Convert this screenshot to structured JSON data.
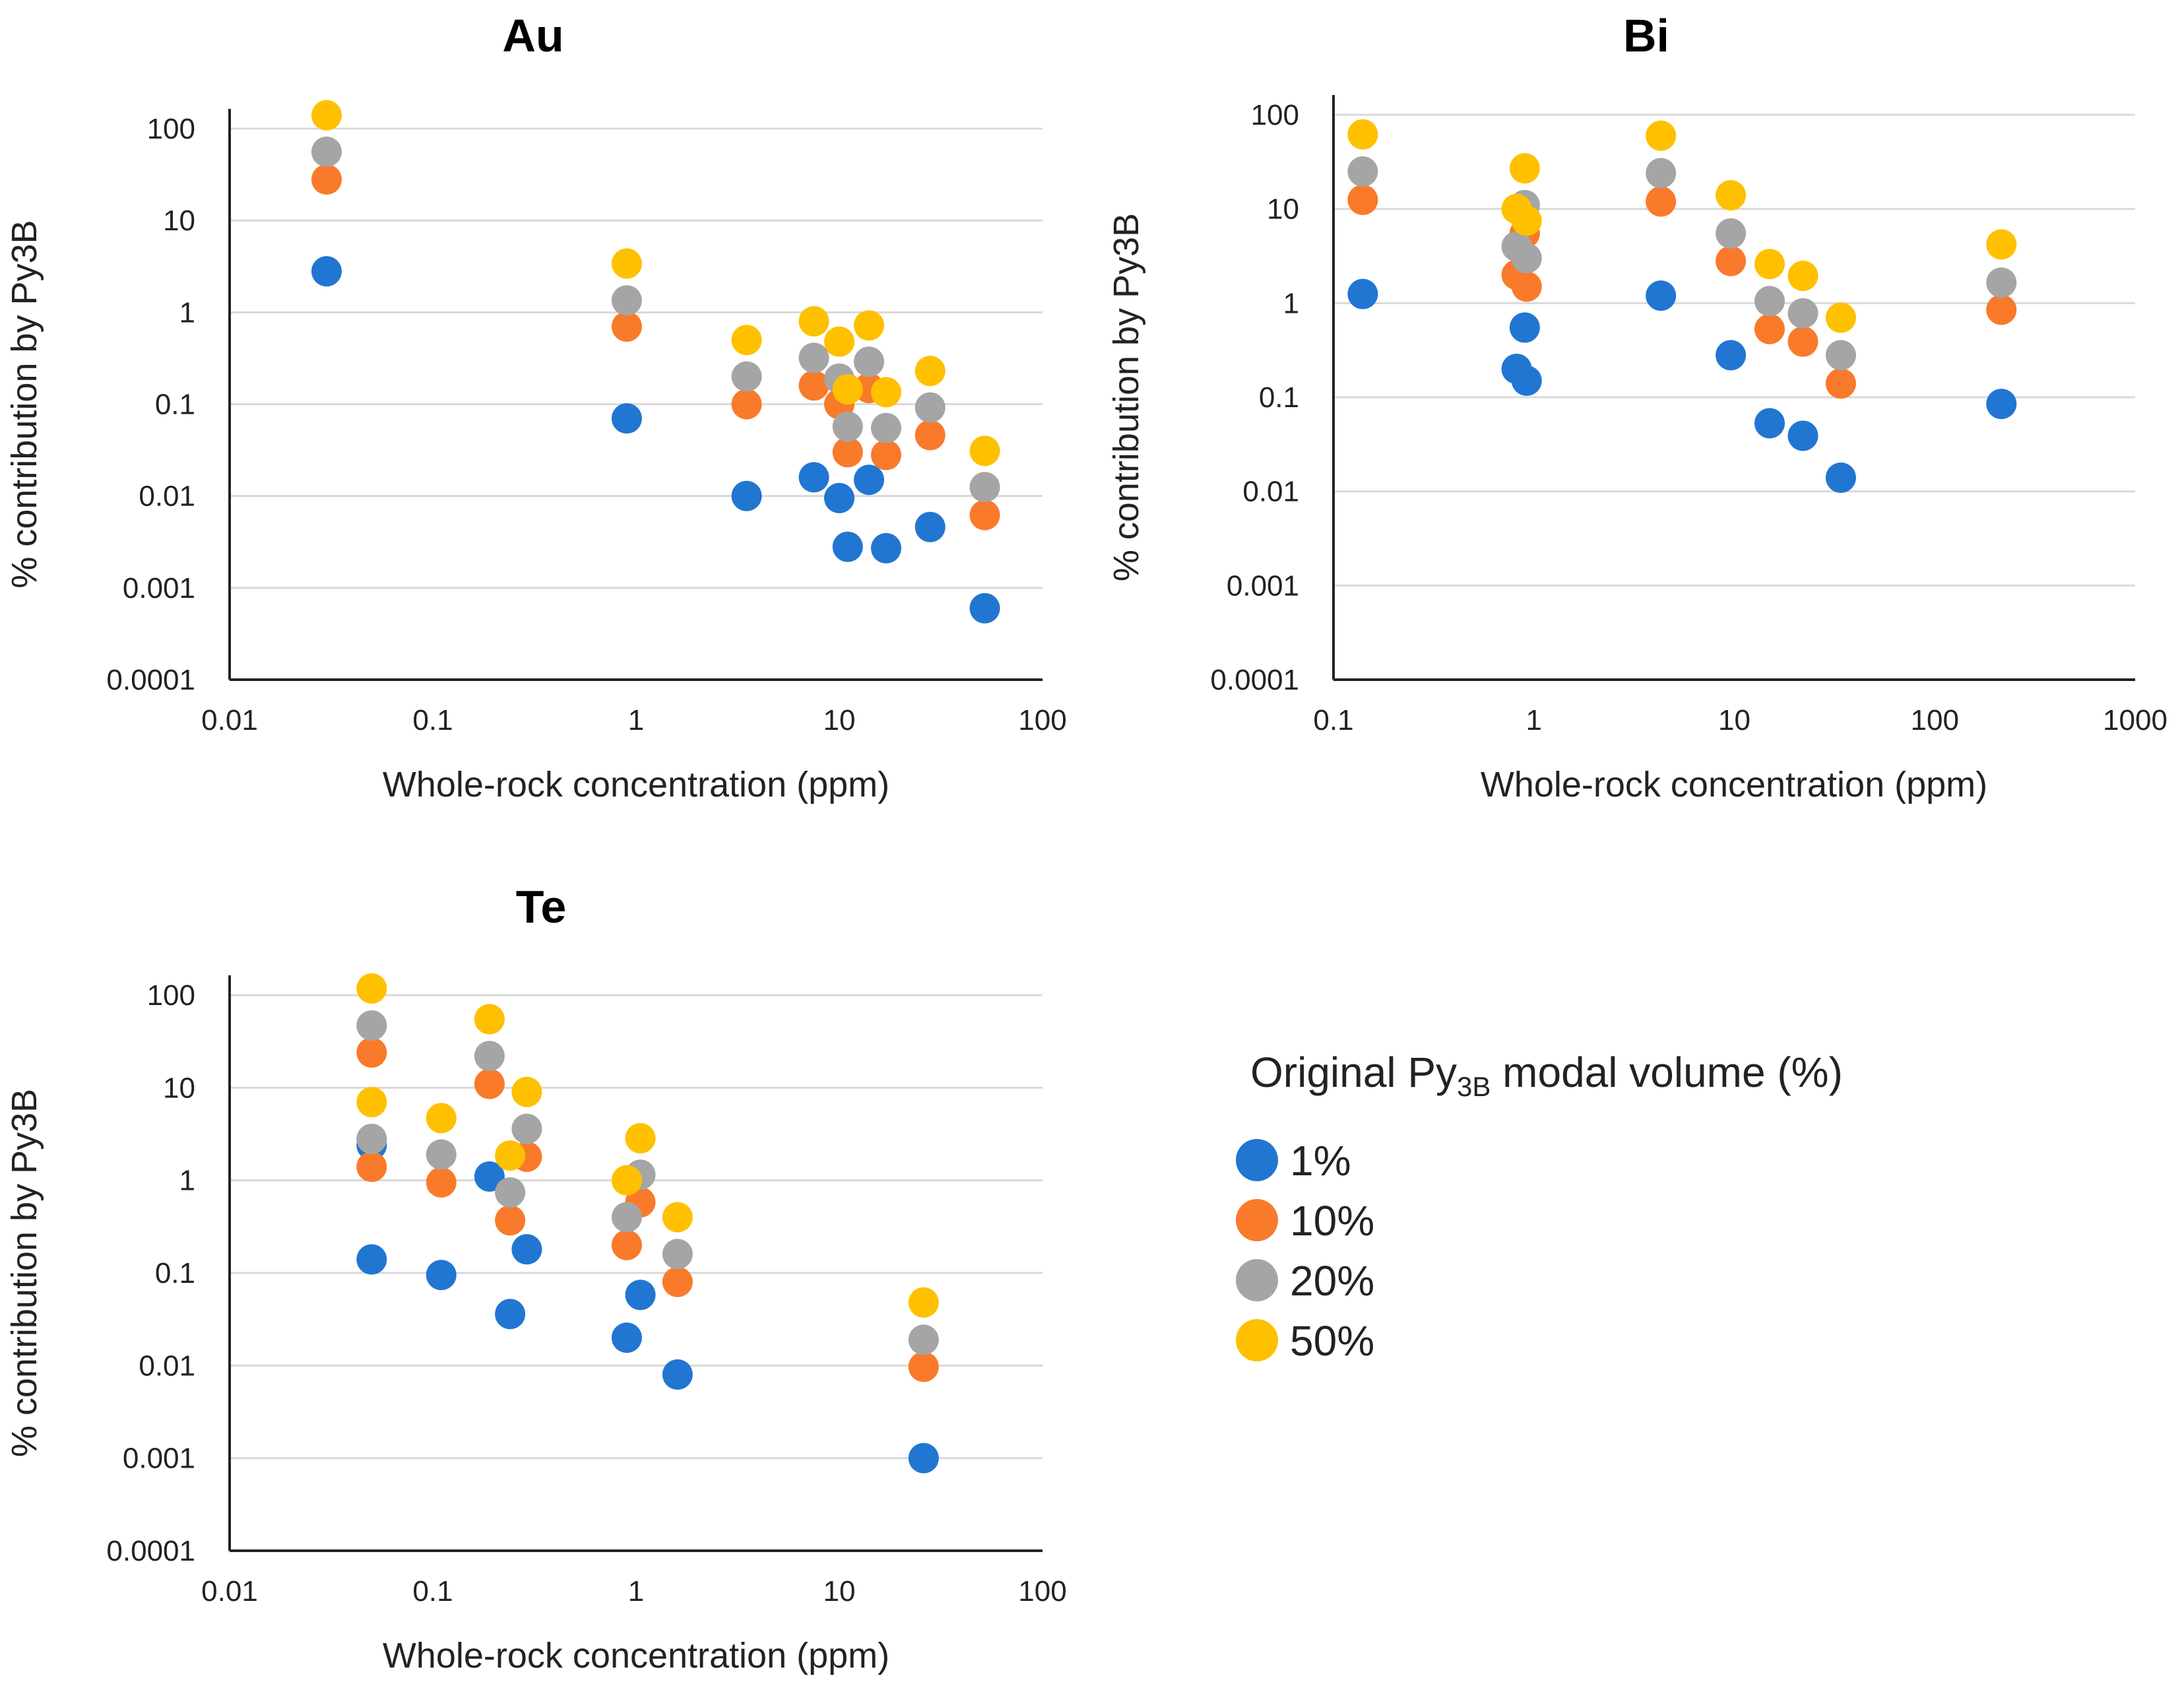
{
  "colors": {
    "s1": "#2176d2",
    "s10": "#f97a2a",
    "s20": "#a5a5a5",
    "s50": "#ffc000"
  },
  "legend": {
    "title_main": "Original Py",
    "title_sub": "3B",
    "title_end": " modal volume (%)",
    "entries": [
      {
        "label": "1%",
        "color": "#2176d2"
      },
      {
        "label": "10%",
        "color": "#f97a2a"
      },
      {
        "label": "20%",
        "color": "#a5a5a5"
      },
      {
        "label": "50%",
        "color": "#ffc000"
      }
    ]
  },
  "chart_data": [
    {
      "type": "scatter",
      "title": "Au",
      "xlabel": "Whole-rock concentration (ppm)",
      "ylabel": "% contribution by Py3B",
      "xscale": "log",
      "yscale": "log",
      "xlim": [
        0.01,
        100
      ],
      "ylim": [
        0.0001,
        100
      ],
      "xticks": [
        "0.01",
        "0.1",
        "1",
        "10",
        "100"
      ],
      "yticks": [
        "0.0001",
        "0.001",
        "0.01",
        "0.1",
        "1",
        "10",
        "100"
      ],
      "series": [
        {
          "name": "1%",
          "color": "#2176d2",
          "points": [
            [
              0.03,
              2.8
            ],
            [
              0.9,
              0.07
            ],
            [
              3.5,
              0.01
            ],
            [
              7.5,
              0.016
            ],
            [
              10,
              0.0095
            ],
            [
              11,
              0.0028
            ],
            [
              14,
              0.015
            ],
            [
              17,
              0.0027
            ],
            [
              28,
              0.0046
            ],
            [
              52,
              0.0006
            ]
          ]
        },
        {
          "name": "10%",
          "color": "#f97a2a",
          "points": [
            [
              0.03,
              28
            ],
            [
              0.9,
              0.7
            ],
            [
              3.5,
              0.1
            ],
            [
              7.5,
              0.16
            ],
            [
              10,
              0.1
            ],
            [
              11,
              0.03
            ],
            [
              14,
              0.15
            ],
            [
              17,
              0.028
            ],
            [
              28,
              0.046
            ],
            [
              52,
              0.0062
            ]
          ]
        },
        {
          "name": "20%",
          "color": "#a5a5a5",
          "points": [
            [
              0.03,
              56
            ],
            [
              0.9,
              1.35
            ],
            [
              3.5,
              0.2
            ],
            [
              7.5,
              0.32
            ],
            [
              10,
              0.19
            ],
            [
              11,
              0.057
            ],
            [
              14,
              0.29
            ],
            [
              17,
              0.055
            ],
            [
              28,
              0.092
            ],
            [
              52,
              0.0125
            ]
          ]
        },
        {
          "name": "50%",
          "color": "#ffc000",
          "points": [
            [
              0.03,
              140
            ],
            [
              0.9,
              3.4
            ],
            [
              3.5,
              0.5
            ],
            [
              7.5,
              0.8
            ],
            [
              10,
              0.48
            ],
            [
              11,
              0.145
            ],
            [
              14,
              0.72
            ],
            [
              17,
              0.135
            ],
            [
              28,
              0.23
            ],
            [
              52,
              0.031
            ]
          ]
        }
      ]
    },
    {
      "type": "scatter",
      "title": "Bi",
      "xlabel": "Whole-rock concentration (ppm)",
      "ylabel": "% contribution by Py3B",
      "xscale": "log",
      "yscale": "log",
      "xlim": [
        0.1,
        1000
      ],
      "ylim": [
        0.0001,
        100
      ],
      "xticks": [
        "0.1",
        "1",
        "10",
        "100",
        "1000"
      ],
      "yticks": [
        "0.0001",
        "0.001",
        "0.01",
        "0.1",
        "1",
        "10",
        "100"
      ],
      "series": [
        {
          "name": "1%",
          "color": "#2176d2",
          "points": [
            [
              0.14,
              1.25
            ],
            [
              0.82,
              0.2
            ],
            [
              0.92,
              0.15
            ],
            [
              0.9,
              0.55
            ],
            [
              4.3,
              1.2
            ],
            [
              9.6,
              0.28
            ],
            [
              15,
              0.053
            ],
            [
              22,
              0.039
            ],
            [
              34,
              0.014
            ],
            [
              215,
              0.085
            ]
          ]
        },
        {
          "name": "10%",
          "color": "#f97a2a",
          "points": [
            [
              0.14,
              12.5
            ],
            [
              0.82,
              2
            ],
            [
              0.92,
              1.5
            ],
            [
              0.9,
              5.5
            ],
            [
              4.3,
              12
            ],
            [
              9.6,
              2.8
            ],
            [
              15,
              0.53
            ],
            [
              22,
              0.39
            ],
            [
              34,
              0.14
            ],
            [
              215,
              0.85
            ]
          ]
        },
        {
          "name": "20%",
          "color": "#a5a5a5",
          "points": [
            [
              0.14,
              25
            ],
            [
              0.82,
              4
            ],
            [
              0.92,
              3
            ],
            [
              0.9,
              11
            ],
            [
              4.3,
              24
            ],
            [
              9.6,
              5.5
            ],
            [
              15,
              1.05
            ],
            [
              22,
              0.78
            ],
            [
              34,
              0.28
            ],
            [
              215,
              1.65
            ]
          ]
        },
        {
          "name": "50%",
          "color": "#ffc000",
          "points": [
            [
              0.14,
              62
            ],
            [
              0.82,
              10
            ],
            [
              0.92,
              7.5
            ],
            [
              0.9,
              27
            ],
            [
              4.3,
              60
            ],
            [
              9.6,
              14
            ],
            [
              15,
              2.6
            ],
            [
              22,
              1.95
            ],
            [
              34,
              0.7
            ],
            [
              215,
              4.2
            ]
          ]
        }
      ]
    },
    {
      "type": "scatter",
      "title": "Te",
      "xlabel": "Whole-rock concentration (ppm)",
      "ylabel": "% contribution by Py3B",
      "xscale": "log",
      "yscale": "log",
      "xlim": [
        0.01,
        100
      ],
      "ylim": [
        0.0001,
        100
      ],
      "xticks": [
        "0.01",
        "0.1",
        "1",
        "10",
        "100"
      ],
      "yticks": [
        "0.0001",
        "0.001",
        "0.01",
        "0.1",
        "1",
        "10",
        "100"
      ],
      "series": [
        {
          "name": "1%",
          "color": "#2176d2",
          "points": [
            [
              0.05,
              2.4
            ],
            [
              0.05,
              0.14
            ],
            [
              0.11,
              0.095
            ],
            [
              0.19,
              1.1
            ],
            [
              0.24,
              0.036
            ],
            [
              0.29,
              0.18
            ],
            [
              0.9,
              0.02
            ],
            [
              1.05,
              0.058
            ],
            [
              1.6,
              0.008
            ],
            [
              26,
              0.001
            ]
          ]
        },
        {
          "name": "10%",
          "color": "#f97a2a",
          "points": [
            [
              0.05,
              24
            ],
            [
              0.05,
              1.4
            ],
            [
              0.11,
              0.95
            ],
            [
              0.19,
              11
            ],
            [
              0.24,
              0.37
            ],
            [
              0.29,
              1.8
            ],
            [
              0.9,
              0.2
            ],
            [
              1.05,
              0.58
            ],
            [
              1.6,
              0.08
            ],
            [
              26,
              0.0097
            ]
          ]
        },
        {
          "name": "20%",
          "color": "#a5a5a5",
          "points": [
            [
              0.05,
              47
            ],
            [
              0.05,
              2.8
            ],
            [
              0.11,
              1.9
            ],
            [
              0.19,
              22
            ],
            [
              0.24,
              0.74
            ],
            [
              0.29,
              3.6
            ],
            [
              0.9,
              0.4
            ],
            [
              1.05,
              1.15
            ],
            [
              1.6,
              0.16
            ],
            [
              26,
              0.019
            ]
          ]
        },
        {
          "name": "50%",
          "color": "#ffc000",
          "points": [
            [
              0.05,
              118
            ],
            [
              0.05,
              7
            ],
            [
              0.11,
              4.7
            ],
            [
              0.19,
              55
            ],
            [
              0.24,
              1.85
            ],
            [
              0.29,
              9
            ],
            [
              0.9,
              1
            ],
            [
              1.05,
              2.85
            ],
            [
              1.6,
              0.4
            ],
            [
              26,
              0.048
            ]
          ]
        }
      ]
    }
  ]
}
